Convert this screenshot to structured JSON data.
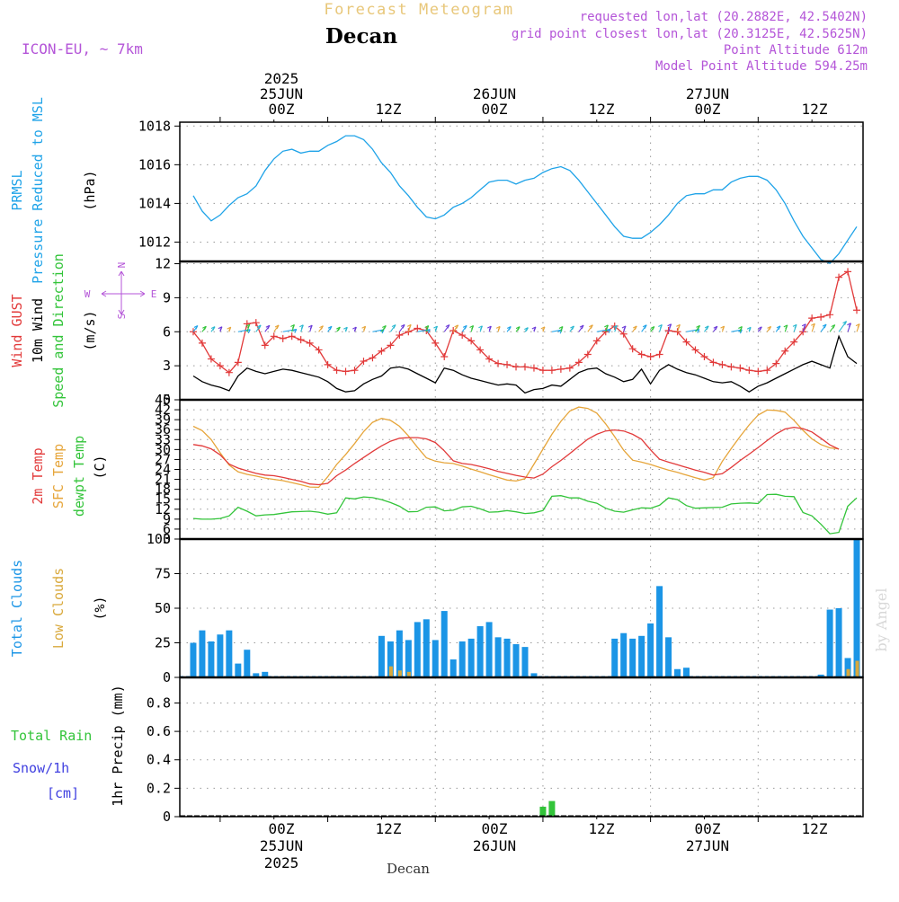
{
  "header": {
    "product": "Forecast Meteogram",
    "location": "Decan",
    "model": "ICON-EU, ~ 7km",
    "requested": "requested lon,lat (20.2882E, 42.5402N)",
    "gridpoint": "grid point closest lon,lat (20.3125E, 42.5625N)",
    "point_alt": "Point Altitude 612m",
    "model_alt": "Model Point Altitude 594.25m",
    "watermark": "by Angel",
    "bottom_label": "Decan"
  },
  "time_axis": {
    "tick_labels": [
      "00Z",
      "12Z",
      "00Z",
      "12Z",
      "00Z",
      "12Z"
    ],
    "date_labels": [
      "25JUN",
      "26JUN",
      "27JUN"
    ],
    "year_label": "2025"
  },
  "panels": {
    "pressure": {
      "label1": "PRMSL",
      "label2": "Pressure Reduced to MSL",
      "units": "(hPa)"
    },
    "wind": {
      "label_gust": "Wind GUST",
      "label_wind": "10m Wind",
      "label_dir": "Speed and Direction",
      "units": "(m/s)",
      "compass_n": "N",
      "compass_s": "S",
      "compass_w": "W",
      "compass_e": "E"
    },
    "temp": {
      "label_2m": "2m Temp",
      "label_sfc": "SFC Temp",
      "label_dew": "dewpt Temp",
      "units": "(C)"
    },
    "clouds": {
      "label_total": "Total Clouds",
      "label_low": "Low Clouds",
      "units": "(%)"
    },
    "precip": {
      "label_rain": "Total  Rain",
      "label_snow": "Snow/1h",
      "label_cm": "[cm]",
      "units": "1hr Precip (mm)"
    }
  },
  "colors": {
    "pressure": "#1fa3e8",
    "gust": "#e23a3a",
    "wind": "#000000",
    "sfc": "#e6a53a",
    "dew": "#33c43a",
    "total_cloud": "#1b95e6",
    "low_cloud": "#d9a93c",
    "rain": "#33c43a",
    "snow": "#4040e0",
    "purple": "#b455d8",
    "gold": "#e8c77a"
  },
  "chart_data": [
    {
      "type": "line",
      "title": "PRMSL Pressure Reduced to MSL",
      "ylabel": "(hPa)",
      "ylim": [
        1011,
        1018.2
      ],
      "yticks": [
        1012,
        1014,
        1016,
        1018
      ],
      "x_hours": [
        -27,
        -26,
        -25,
        -24,
        -23,
        -22,
        -21,
        -20,
        -19,
        -18,
        -17,
        -16,
        -15,
        -14,
        -13,
        -12,
        -11,
        -10,
        -9,
        -8,
        -7,
        -6,
        -5,
        -4,
        -3,
        -2,
        -1,
        0,
        1,
        2,
        3,
        4,
        5,
        6,
        7,
        8,
        9,
        10,
        11,
        12,
        13,
        14,
        15,
        16,
        17,
        18,
        19,
        20,
        21,
        22,
        23,
        24,
        25,
        26,
        27,
        28,
        29,
        30,
        31,
        32,
        33,
        34,
        35,
        36,
        37,
        38,
        39,
        40,
        41,
        42,
        43,
        44,
        45,
        46,
        47
      ],
      "series": [
        {
          "name": "PRMSL",
          "values": [
            1014.4,
            1013.6,
            1013.1,
            1013.4,
            1013.9,
            1014.3,
            1014.5,
            1014.9,
            1015.7,
            1016.3,
            1016.7,
            1016.8,
            1016.6,
            1016.7,
            1016.7,
            1017.0,
            1017.2,
            1017.5,
            1017.5,
            1017.3,
            1016.8,
            1016.1,
            1015.6,
            1014.9,
            1014.4,
            1013.8,
            1013.3,
            1013.2,
            1013.4,
            1013.8,
            1014.0,
            1014.3,
            1014.7,
            1015.1,
            1015.2,
            1015.2,
            1015.0,
            1015.2,
            1015.3,
            1015.6,
            1015.8,
            1015.9,
            1015.7,
            1015.2,
            1014.6,
            1014.0,
            1013.4,
            1012.8,
            1012.3,
            1012.2,
            1012.2,
            1012.5,
            1012.9,
            1013.4,
            1014.0,
            1014.4,
            1014.5,
            1014.5,
            1014.7,
            1014.7,
            1015.1,
            1015.3,
            1015.4,
            1015.4,
            1015.2,
            1014.7,
            1014.0,
            1013.1,
            1012.3,
            1011.7,
            1011.1,
            1010.9,
            1011.4,
            1012.1,
            1012.8
          ]
        }
      ]
    },
    {
      "type": "line",
      "title": "Wind GUST / 10m Wind",
      "ylabel": "(m/s)",
      "ylim": [
        0,
        12.2
      ],
      "yticks": [
        0,
        3,
        6,
        9,
        12
      ],
      "x_hours": [
        -27,
        -26,
        -25,
        -24,
        -23,
        -22,
        -21,
        -20,
        -19,
        -18,
        -17,
        -16,
        -15,
        -14,
        -13,
        -12,
        -11,
        -10,
        -9,
        -8,
        -7,
        -6,
        -5,
        -4,
        -3,
        -2,
        -1,
        0,
        1,
        2,
        3,
        4,
        5,
        6,
        7,
        8,
        9,
        10,
        11,
        12,
        13,
        14,
        15,
        16,
        17,
        18,
        19,
        20,
        21,
        22,
        23,
        24,
        25,
        26,
        27,
        28,
        29,
        30,
        31,
        32,
        33,
        34,
        35,
        36,
        37,
        38,
        39,
        40,
        41,
        42,
        43,
        44,
        45,
        46,
        47
      ],
      "series": [
        {
          "name": "Wind GUST",
          "values": [
            6.0,
            5.0,
            3.6,
            3.0,
            2.4,
            3.3,
            6.7,
            6.8,
            4.8,
            5.6,
            5.4,
            5.6,
            5.3,
            5.0,
            4.4,
            3.1,
            2.6,
            2.5,
            2.6,
            3.4,
            3.7,
            4.3,
            4.8,
            5.7,
            6.0,
            6.3,
            6.1,
            5.0,
            3.8,
            6.1,
            5.7,
            5.2,
            4.4,
            3.6,
            3.2,
            3.1,
            2.9,
            2.9,
            2.8,
            2.6,
            2.6,
            2.7,
            2.8,
            3.3,
            4.0,
            5.2,
            6.0,
            6.5,
            5.8,
            4.5,
            4.0,
            3.8,
            4.0,
            6.1,
            6.0,
            5.1,
            4.4,
            3.8,
            3.3,
            3.1,
            2.9,
            2.8,
            2.6,
            2.5,
            2.6,
            3.2,
            4.3,
            5.1,
            6.0,
            7.2,
            7.3,
            7.5,
            10.8,
            11.3,
            7.9
          ]
        },
        {
          "name": "10m Wind",
          "values": [
            2.1,
            1.6,
            1.3,
            1.1,
            0.8,
            2.1,
            2.8,
            2.5,
            2.3,
            2.5,
            2.7,
            2.6,
            2.4,
            2.2,
            2.0,
            1.6,
            1.0,
            0.7,
            0.8,
            1.4,
            1.8,
            2.1,
            2.8,
            2.9,
            2.7,
            2.3,
            1.9,
            1.5,
            2.8,
            2.6,
            2.2,
            1.9,
            1.7,
            1.5,
            1.3,
            1.4,
            1.3,
            0.6,
            0.9,
            1.0,
            1.3,
            1.2,
            1.8,
            2.4,
            2.7,
            2.8,
            2.3,
            2.0,
            1.6,
            1.8,
            2.7,
            1.4,
            2.6,
            3.1,
            2.7,
            2.4,
            2.2,
            1.9,
            1.6,
            1.5,
            1.6,
            1.2,
            0.7,
            1.2,
            1.5,
            1.9,
            2.3,
            2.7,
            3.1,
            3.4,
            3.1,
            2.8,
            5.6,
            3.8,
            3.2
          ]
        }
      ]
    },
    {
      "type": "line",
      "title": "2m Temp / SFC Temp / dewpt Temp",
      "ylabel": "(C)",
      "ylim": [
        3,
        45
      ],
      "yticks": [
        3,
        6,
        9,
        12,
        15,
        18,
        21,
        24,
        27,
        30,
        33,
        36,
        39,
        42,
        45
      ],
      "x_hours": [
        -27,
        -26,
        -25,
        -24,
        -23,
        -22,
        -21,
        -20,
        -19,
        -18,
        -17,
        -16,
        -15,
        -14,
        -13,
        -12,
        -11,
        -10,
        -9,
        -8,
        -7,
        -6,
        -5,
        -4,
        -3,
        -2,
        -1,
        0,
        1,
        2,
        3,
        4,
        5,
        6,
        7,
        8,
        9,
        10,
        11,
        12,
        13,
        14,
        15,
        16,
        17,
        18,
        19,
        20,
        21,
        22,
        23,
        24,
        25,
        26,
        27,
        28,
        29,
        30,
        31,
        32,
        33,
        34,
        35,
        36,
        37,
        38,
        39,
        40,
        41,
        42,
        43,
        44,
        45,
        46,
        47
      ],
      "series": [
        {
          "name": "2m Temp",
          "values": [
            31.5,
            31.1,
            30.2,
            28.4,
            25.6,
            24.4,
            23.6,
            22.8,
            22.3,
            22.1,
            21.6,
            21.0,
            20.4,
            19.6,
            19.4,
            19.8,
            22.1,
            23.8,
            25.8,
            27.6,
            29.4,
            31.1,
            32.5,
            33.4,
            33.6,
            33.6,
            33.2,
            32.1,
            29.6,
            26.6,
            25.8,
            25.5,
            24.9,
            24.2,
            23.4,
            22.8,
            22.2,
            21.7,
            21.4,
            22.6,
            24.8,
            26.7,
            28.8,
            31.0,
            33.1,
            34.6,
            35.6,
            35.9,
            35.6,
            34.6,
            33.1,
            29.9,
            27.1,
            26.2,
            25.4,
            24.6,
            23.8,
            23.1,
            22.3,
            22.7,
            24.6,
            26.7,
            28.6,
            30.6,
            32.7,
            34.7,
            36.2,
            36.7,
            36.3,
            35.3,
            33.4,
            31.4,
            30.1
          ]
        },
        {
          "name": "SFC Temp",
          "values": [
            37.0,
            35.7,
            33.0,
            29.0,
            25.3,
            23.3,
            22.5,
            22.0,
            21.4,
            21.0,
            20.6,
            20.0,
            19.4,
            18.7,
            18.6,
            21.8,
            25.5,
            28.5,
            31.8,
            35.4,
            38.2,
            39.4,
            38.8,
            37.0,
            34.1,
            30.7,
            27.5,
            26.5,
            26.0,
            25.8,
            25.0,
            24.1,
            23.3,
            22.4,
            21.6,
            20.8,
            20.5,
            21.2,
            25.6,
            30.1,
            34.6,
            38.5,
            41.6,
            42.8,
            42.4,
            41.0,
            37.7,
            33.9,
            29.8,
            26.8,
            26.2,
            25.5,
            24.6,
            23.8,
            23.1,
            22.3,
            21.5,
            20.8,
            21.5,
            26.4,
            30.3,
            34.0,
            37.4,
            40.4,
            41.9,
            41.8,
            41.3,
            38.8,
            35.8,
            33.2,
            31.5,
            30.5,
            30.2
          ]
        },
        {
          "name": "dewpt Temp",
          "values": [
            9.2,
            9.0,
            9.0,
            9.2,
            10.0,
            12.6,
            11.4,
            10.0,
            10.3,
            10.4,
            10.8,
            11.2,
            11.3,
            11.4,
            11.1,
            10.5,
            10.9,
            15.4,
            15.1,
            15.7,
            15.5,
            14.9,
            14.0,
            12.9,
            11.2,
            11.3,
            12.6,
            12.7,
            11.5,
            11.7,
            12.7,
            12.9,
            12.1,
            11.1,
            11.2,
            11.6,
            11.2,
            10.7,
            10.9,
            11.6,
            15.9,
            16.1,
            15.4,
            15.4,
            14.4,
            13.8,
            12.3,
            11.4,
            11.1,
            11.8,
            12.4,
            12.3,
            13.2,
            15.4,
            14.9,
            13.1,
            12.3,
            12.4,
            12.5,
            12.6,
            13.6,
            13.8,
            13.9,
            13.7,
            16.4,
            16.5,
            15.9,
            15.8,
            11.0,
            10.0,
            7.5,
            4.6,
            5.0,
            12.9,
            15.4
          ]
        }
      ]
    },
    {
      "type": "bar",
      "title": "Total Clouds / Low Clouds",
      "ylabel": "(%)",
      "ylim": [
        0,
        100
      ],
      "yticks": [
        0,
        25,
        50,
        75,
        100
      ],
      "x_hours": [
        -27,
        -26,
        -25,
        -24,
        -23,
        -22,
        -21,
        -20,
        -19,
        -18,
        -17,
        -16,
        -15,
        -14,
        -13,
        -12,
        -11,
        -10,
        -9,
        -8,
        -7,
        -6,
        -5,
        -4,
        -3,
        -2,
        -1,
        0,
        1,
        2,
        3,
        4,
        5,
        6,
        7,
        8,
        9,
        10,
        11,
        12,
        13,
        14,
        15,
        16,
        17,
        18,
        19,
        20,
        21,
        22,
        23,
        24,
        25,
        26,
        27,
        28,
        29,
        30,
        31,
        32,
        33,
        34,
        35,
        36,
        37,
        38,
        39,
        40,
        41,
        42,
        43,
        44,
        45,
        46,
        47
      ],
      "series": [
        {
          "name": "Total Clouds",
          "values": [
            25,
            34,
            26,
            31,
            34,
            10,
            20,
            3,
            4,
            0,
            0,
            0,
            0,
            0,
            0,
            0,
            0,
            0,
            0,
            0,
            0,
            30,
            26,
            34,
            27,
            40,
            42,
            27,
            48,
            13,
            26,
            28,
            37,
            40,
            29,
            28,
            24,
            22,
            3,
            0,
            0,
            0,
            0,
            0,
            0,
            0,
            0,
            28,
            32,
            28,
            30,
            39,
            66,
            29,
            6,
            7,
            0,
            0,
            0,
            0,
            0,
            0,
            0,
            0,
            0,
            0,
            0,
            0,
            0,
            0,
            2,
            49,
            50,
            14,
            100
          ]
        },
        {
          "name": "Low Clouds",
          "values": [
            0,
            0,
            0,
            0,
            0,
            0,
            0,
            0,
            0,
            0,
            0,
            0,
            0,
            0,
            0,
            0,
            0,
            0,
            0,
            0,
            0,
            0,
            8,
            5,
            4,
            0,
            0,
            0,
            0,
            0,
            0,
            0,
            0,
            0,
            0,
            0,
            0,
            0,
            0,
            0,
            0,
            0,
            0,
            0,
            0,
            0,
            0,
            0,
            0,
            0,
            0,
            0,
            0,
            0,
            0,
            0,
            0,
            0,
            0,
            0,
            0,
            0,
            0,
            0,
            0,
            0,
            0,
            0,
            0,
            0,
            0,
            0,
            0,
            6,
            12
          ]
        }
      ]
    },
    {
      "type": "bar",
      "title": "Total Rain / Snow 1h",
      "ylabel": "1hr Precip (mm)",
      "ylim": [
        0,
        0.98
      ],
      "yticks": [
        0,
        0.2,
        0.4,
        0.6,
        0.8
      ],
      "series": [
        {
          "name": "Total Rain",
          "x_hours": [
            12,
            13
          ],
          "values": [
            0.07,
            0.11
          ]
        },
        {
          "name": "Snow/1h",
          "x_hours": [],
          "values": []
        }
      ]
    }
  ]
}
